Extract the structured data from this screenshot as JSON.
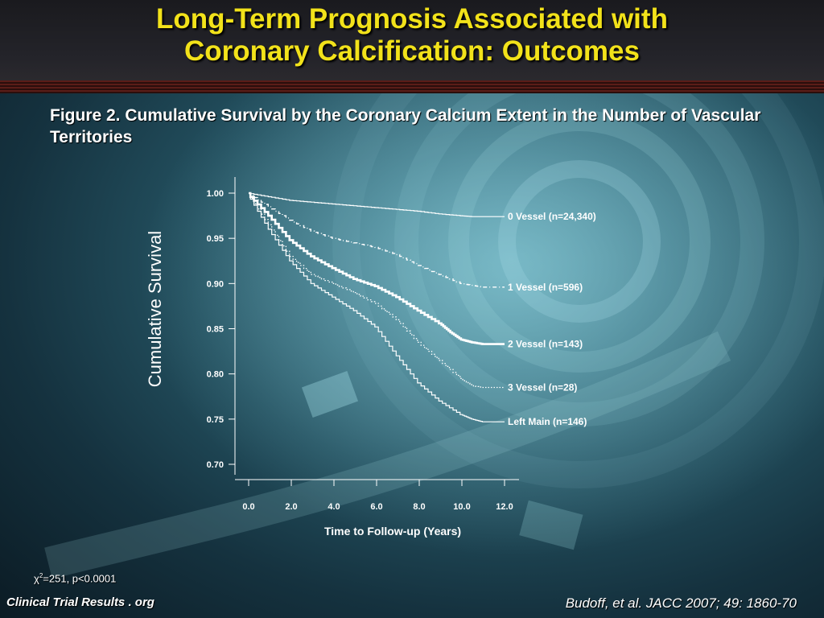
{
  "slide": {
    "title_line1": "Long-Term Prognosis Associated with",
    "title_line2": "Coronary Calcification: Outcomes",
    "figure_title": "Figure 2. Cumulative Survival by the Coronary Calcium Extent in the Number of Vascular Territories",
    "footer_left": "Clinical Trial Results . org",
    "footer_right": "Budoff, et al. JACC 2007; 49: 1860-70",
    "stat_symbol": "χ",
    "stat_sup": "2",
    "stat_rest": "=251, p<0.0001"
  },
  "colors": {
    "title": "#f2e21a",
    "text": "#ffffff",
    "rule": "#5a1d18"
  },
  "chart_data": {
    "type": "line",
    "title": "Figure 2. Cumulative Survival by the Coronary Calcium Extent in the Number of Vascular Territories",
    "xlabel": "Time to Follow-up (Years)",
    "ylabel": "Cumulative Survival",
    "xlim": [
      0,
      12
    ],
    "ylim": [
      0.7,
      1.0
    ],
    "xticks": [
      "0.0",
      "2.0",
      "4.0",
      "6.0",
      "8.0",
      "10.0",
      "12.0"
    ],
    "yticks": [
      "1.00",
      "0.95",
      "0.90",
      "0.85",
      "0.80",
      "0.75",
      "0.70"
    ],
    "legend": "inline-right",
    "series": [
      {
        "name": "0 Vessel (n=24,340)",
        "style": "solid-thin",
        "x": [
          0,
          1,
          2,
          3,
          4,
          5,
          6,
          7,
          8,
          9,
          10,
          10.5,
          11.0,
          12.0
        ],
        "y": [
          1.0,
          0.996,
          0.992,
          0.99,
          0.988,
          0.986,
          0.984,
          0.982,
          0.98,
          0.977,
          0.975,
          0.974,
          0.974,
          0.974
        ]
      },
      {
        "name": "1 Vessel (n=596)",
        "style": "dash-dot",
        "x": [
          0,
          1,
          2,
          3,
          4,
          5,
          6,
          7,
          8,
          9,
          10,
          10.5,
          11.0,
          12.0
        ],
        "y": [
          1.0,
          0.985,
          0.97,
          0.958,
          0.95,
          0.945,
          0.94,
          0.932,
          0.92,
          0.91,
          0.9,
          0.898,
          0.896,
          0.896
        ]
      },
      {
        "name": "2 Vessel (n=143)",
        "style": "solid-thick",
        "x": [
          0,
          1,
          2,
          3,
          4,
          5,
          6,
          7,
          8,
          9,
          9.5,
          10,
          10.5,
          11.0,
          12.0
        ],
        "y": [
          1.0,
          0.975,
          0.948,
          0.93,
          0.917,
          0.905,
          0.897,
          0.885,
          0.87,
          0.856,
          0.846,
          0.838,
          0.835,
          0.833,
          0.833
        ]
      },
      {
        "name": "3 Vessel (n=28)",
        "style": "dotted",
        "x": [
          0,
          1,
          2,
          3,
          4,
          5,
          6,
          7,
          8,
          9,
          10,
          10.5,
          11.0,
          12.0
        ],
        "y": [
          1.0,
          0.965,
          0.93,
          0.91,
          0.9,
          0.89,
          0.878,
          0.86,
          0.835,
          0.815,
          0.795,
          0.787,
          0.785,
          0.785
        ]
      },
      {
        "name": "Left Main (n=146)",
        "style": "solid-thin",
        "x": [
          0,
          1,
          2,
          3,
          4,
          5,
          6,
          7,
          8,
          9,
          10,
          10.5,
          11.0,
          12.0
        ],
        "y": [
          1.0,
          0.96,
          0.925,
          0.9,
          0.885,
          0.87,
          0.852,
          0.82,
          0.79,
          0.77,
          0.755,
          0.75,
          0.747,
          0.747
        ]
      }
    ]
  }
}
